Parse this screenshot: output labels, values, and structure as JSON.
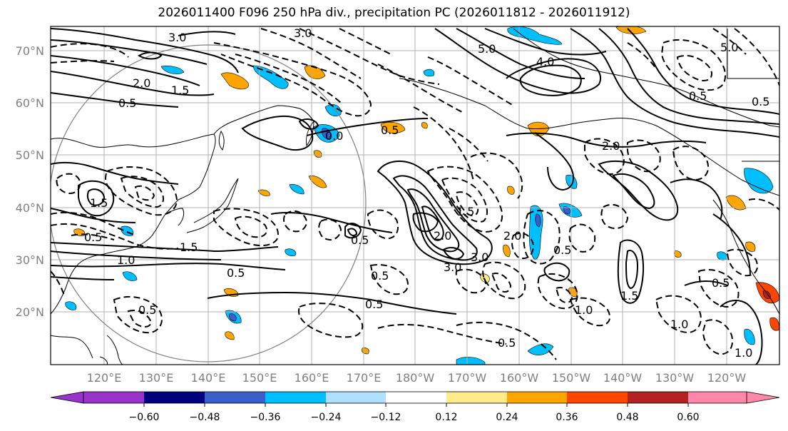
{
  "title": "2026011400 F096 250 hPa div., precipitation PC (2026011812 - 2026011912)",
  "lat_labels": [
    "70°N",
    "60°N",
    "50°N",
    "40°N",
    "30°N",
    "20°N"
  ],
  "lon_labels": [
    "120°E",
    "130°E",
    "140°E",
    "150°E",
    "160°E",
    "170°E",
    "180°W",
    "170°W",
    "160°W",
    "150°W",
    "140°W",
    "130°W",
    "120°W"
  ],
  "colorbar": {
    "colors": [
      "#9933cc",
      "#000080",
      "#3a5fcd",
      "#00bfff",
      "#b0e0ff",
      "#ffffff",
      "#ffeb8c",
      "#ffa500",
      "#ff4500",
      "#b22222",
      "#ff88aa"
    ],
    "tick_labels": [
      "−0.60",
      "−0.48",
      "−0.36",
      "−0.24",
      "−0.12",
      "0.12",
      "0.24",
      "0.36",
      "0.48",
      "0.60"
    ]
  },
  "contour_labels": [
    "3.0",
    "3.0",
    "2.0",
    "1.5",
    "0.5",
    "0.0",
    "0.5",
    "5.0",
    "4.0",
    "3.0",
    "2.0",
    "5.0",
    "0.5",
    "1.5",
    "2.0",
    "3.0",
    "0.5",
    "1.5",
    "0.5",
    "1.0",
    "0.5",
    "0.5",
    "1.5",
    "0.5",
    "1.0",
    "0.5",
    "1.0",
    "1.5",
    "2.0",
    "0.5",
    "1.0",
    "0.5",
    "0.5",
    "0.5"
  ]
}
